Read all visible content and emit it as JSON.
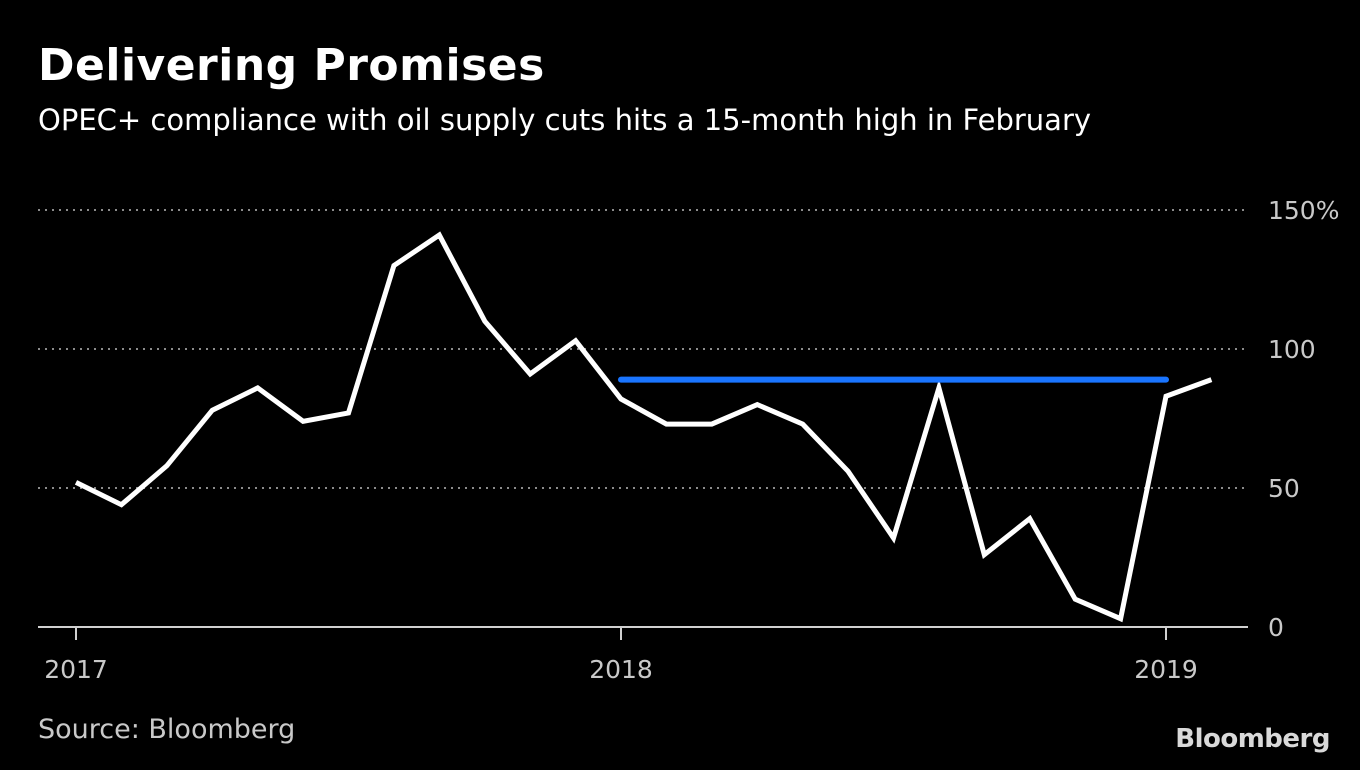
{
  "header": {
    "title": "Delivering Promises",
    "subtitle": "OPEC+ compliance with oil supply cuts hits a 15-month high in February"
  },
  "footer": {
    "source": "Source: Bloomberg",
    "logo": "Bloomberg"
  },
  "colors": {
    "background": "#000000",
    "series_line": "#ffffff",
    "target_line": "#1a75ff",
    "grid": "#8c8c8c",
    "tick_text": "#c9c9c9"
  },
  "chart_data": {
    "type": "line",
    "title": "Delivering Promises",
    "subtitle": "OPEC+ compliance with oil supply cuts hits a 15-month high in February",
    "xlabel": "",
    "ylabel": "",
    "x_ticks": [
      "2017",
      "2018",
      "2019"
    ],
    "y_ticks": [
      "0",
      "50",
      "100",
      "150%"
    ],
    "ylim": [
      0,
      150
    ],
    "xlim": [
      "2017-01",
      "2019-03"
    ],
    "grid": true,
    "grid_style": "dotted-horizontal",
    "y_axis_position": "right",
    "legend": "none",
    "series": [
      {
        "x": [
          "2017-01",
          "2017-02",
          "2017-03",
          "2017-04",
          "2017-05",
          "2017-06",
          "2017-07",
          "2017-08",
          "2017-09",
          "2017-10",
          "2017-11",
          "2017-12",
          "2018-01",
          "2018-02",
          "2018-03",
          "2018-04",
          "2018-05",
          "2018-06",
          "2018-07",
          "2018-08",
          "2018-09",
          "2018-10",
          "2018-11",
          "2018-12",
          "2019-01",
          "2019-02"
        ],
        "values": [
          52,
          44,
          58,
          78,
          86,
          74,
          77,
          130,
          141,
          110,
          91,
          103,
          82,
          73,
          73,
          80,
          73,
          56,
          32,
          86,
          26,
          39,
          10,
          3,
          83,
          89
        ]
      },
      {
        "x": [
          "2018-01",
          "2019-01"
        ],
        "values": [
          89,
          89
        ]
      }
    ]
  }
}
